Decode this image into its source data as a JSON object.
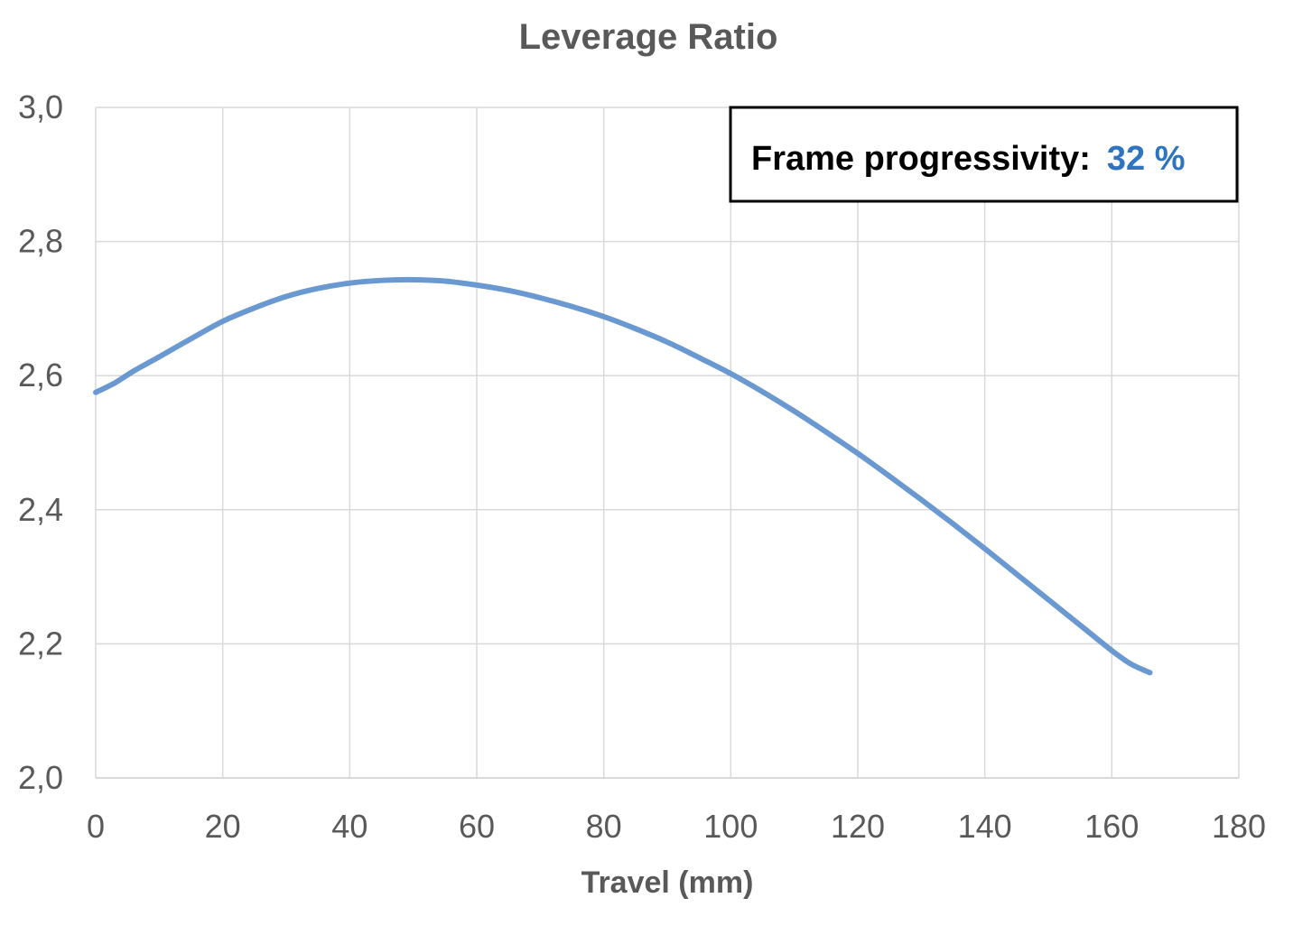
{
  "chart_data": {
    "type": "line",
    "title": "Leverage Ratio",
    "xlabel": "Travel (mm)",
    "ylabel": "",
    "xlim": [
      0,
      180
    ],
    "ylim": [
      2.0,
      3.0
    ],
    "x_ticks": [
      "0",
      "20",
      "40",
      "60",
      "80",
      "100",
      "120",
      "140",
      "160",
      "180"
    ],
    "y_ticks": [
      "2,0",
      "2,2",
      "2,4",
      "2,6",
      "2,8",
      "3,0"
    ],
    "grid": true,
    "legend": "none",
    "series": [
      {
        "color": "#6a98d0",
        "x": [
          0,
          3,
          6,
          10,
          15,
          20,
          25,
          30,
          35,
          40,
          45,
          50,
          55,
          60,
          65,
          70,
          75,
          80,
          85,
          90,
          95,
          100,
          105,
          110,
          115,
          120,
          125,
          130,
          135,
          140,
          145,
          150,
          155,
          160,
          163,
          166
        ],
        "y": [
          2.575,
          2.589,
          2.607,
          2.628,
          2.655,
          2.681,
          2.701,
          2.718,
          2.73,
          2.738,
          2.742,
          2.743,
          2.741,
          2.735,
          2.727,
          2.716,
          2.703,
          2.688,
          2.67,
          2.65,
          2.627,
          2.603,
          2.576,
          2.547,
          2.516,
          2.484,
          2.45,
          2.415,
          2.379,
          2.342,
          2.304,
          2.266,
          2.228,
          2.19,
          2.17,
          2.157
        ]
      }
    ],
    "annotation": {
      "label": "Frame progressivity:",
      "value": "32 %",
      "placement": "top-right"
    }
  }
}
